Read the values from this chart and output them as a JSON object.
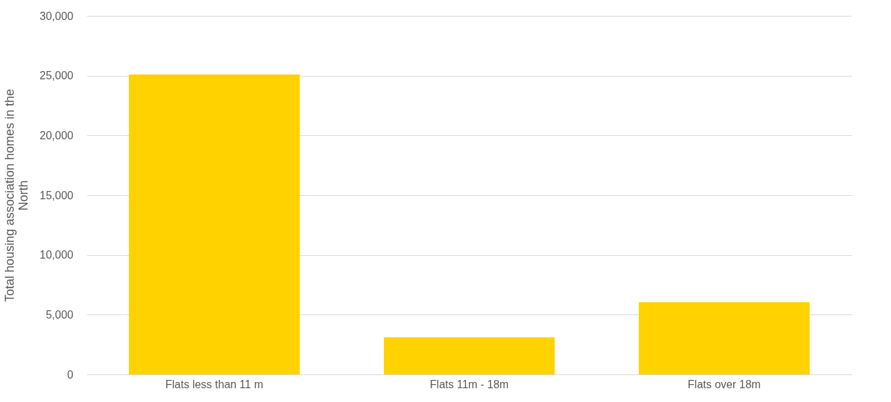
{
  "chart_data": {
    "type": "bar",
    "ylabel": "Total housing association homes in the North",
    "categories": [
      "Flats less than 11 m",
      "Flats 11m - 18m",
      "Flats over 18m"
    ],
    "values": [
      25100,
      3100,
      6050
    ],
    "color": "#ffd200",
    "ylim": [
      0,
      30000
    ],
    "yticks": [
      {
        "value": 0,
        "label": "0"
      },
      {
        "value": 5000,
        "label": "5,000"
      },
      {
        "value": 10000,
        "label": "10,000"
      },
      {
        "value": 15000,
        "label": "15,000"
      },
      {
        "value": 20000,
        "label": "20,000"
      },
      {
        "value": 25000,
        "label": "25,000"
      },
      {
        "value": 30000,
        "label": "30,000"
      }
    ],
    "grid": "y"
  }
}
